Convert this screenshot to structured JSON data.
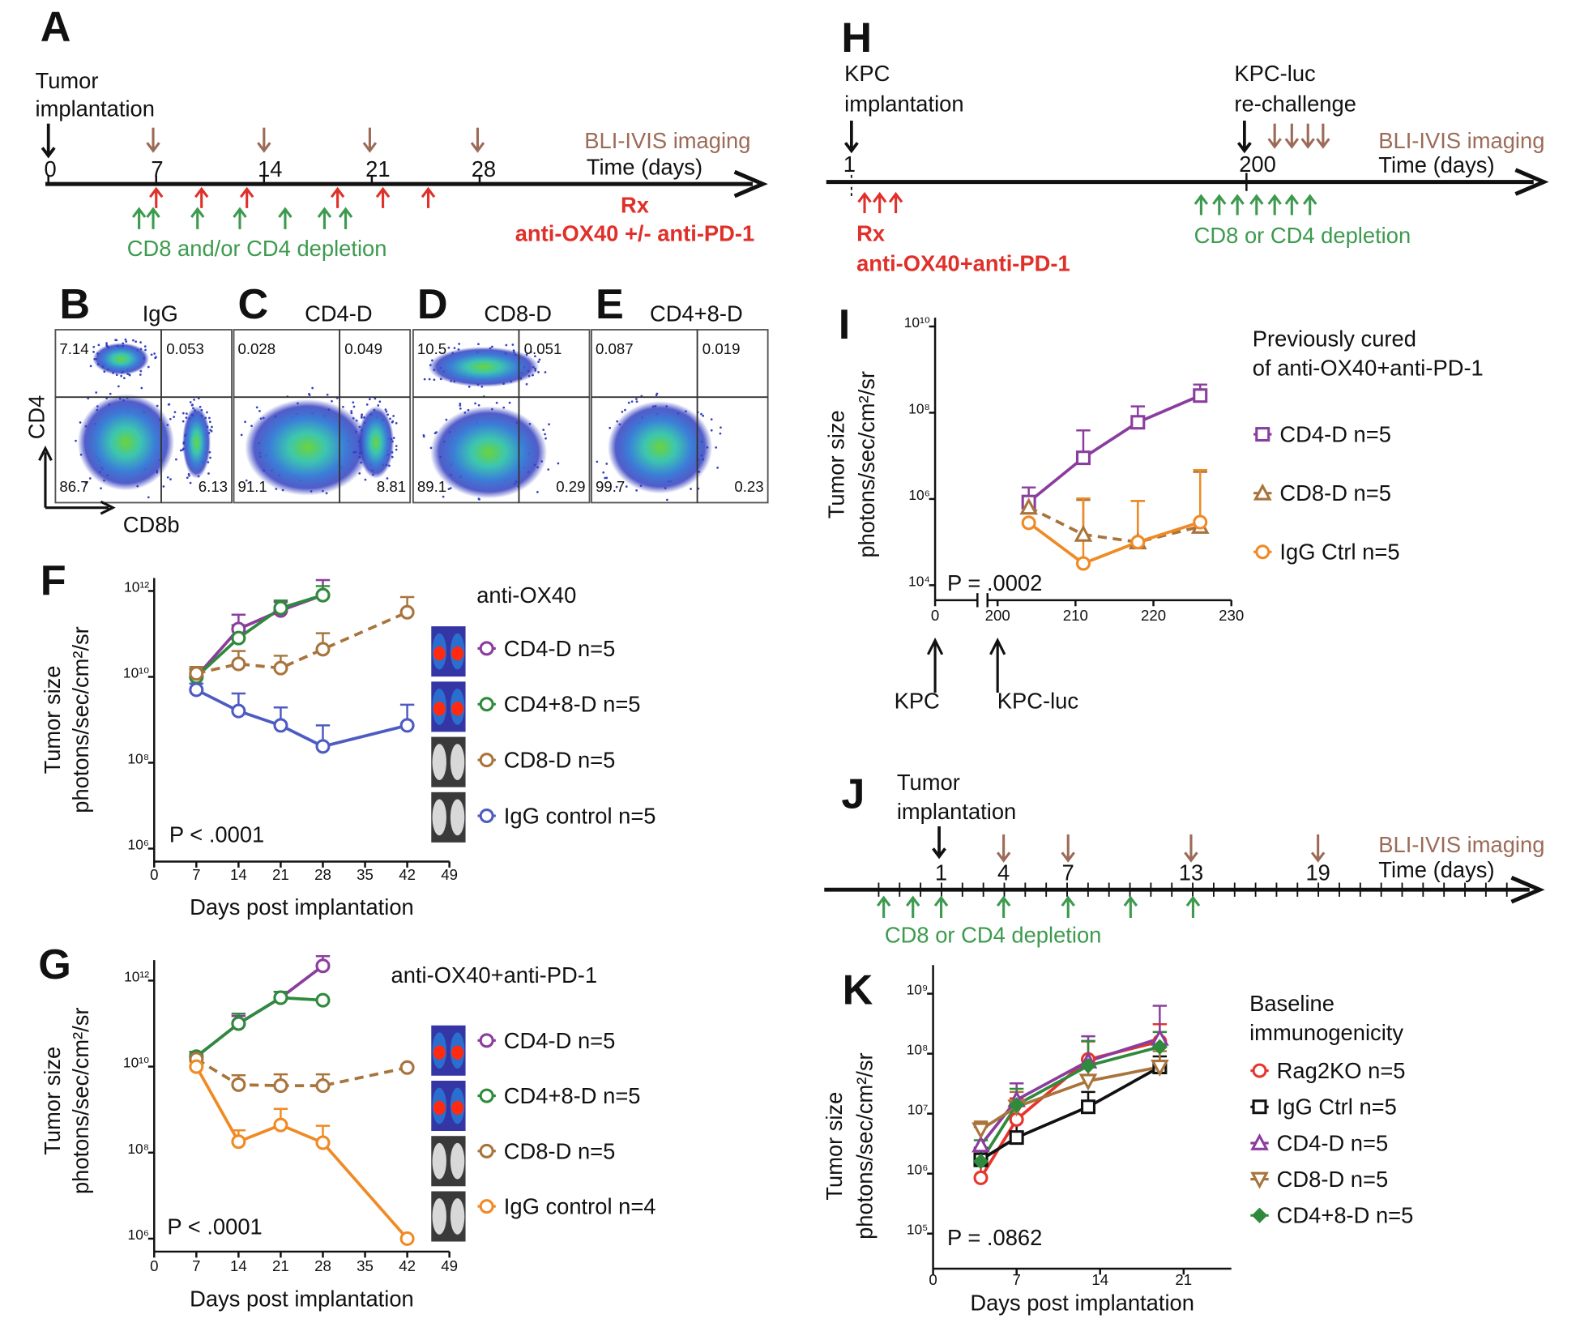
{
  "panels": {
    "A": {
      "label": "A",
      "event": [
        "Tumor",
        "implantation"
      ],
      "days": [
        0,
        7,
        14,
        21,
        28
      ],
      "imaging": "BLI-IVIS imaging",
      "axis": "Time (days)",
      "rx": [
        "Rx",
        "anti-OX40 +/- anti-PD-1"
      ],
      "depletion": "CD8 and/or CD4 depletion"
    },
    "flow": {
      "ylabel": "CD4",
      "xlabel": "CD8b",
      "plots": [
        {
          "label": "B",
          "title": "IgG",
          "quadrants": [
            7.14,
            0.053,
            86.7,
            6.13
          ]
        },
        {
          "label": "C",
          "title": "CD4-D",
          "quadrants": [
            0.028,
            0.049,
            91.1,
            8.81
          ]
        },
        {
          "label": "D",
          "title": "CD8-D",
          "quadrants": [
            10.5,
            0.051,
            89.1,
            0.29
          ]
        },
        {
          "label": "E",
          "title": "CD4+8-D",
          "quadrants": [
            0.087,
            0.019,
            99.7,
            0.23
          ]
        }
      ]
    },
    "H": {
      "label": "H",
      "events": [
        [
          "KPC",
          "implantation"
        ],
        [
          "KPC-luc",
          "re-challenge"
        ]
      ],
      "days": [
        1,
        200
      ],
      "imaging": "BLI-IVIS imaging",
      "axis": "Time (days)",
      "rx": [
        "Rx",
        "anti-OX40+anti-PD-1"
      ],
      "depletion": "CD8 or CD4 depletion"
    },
    "J": {
      "label": "J",
      "event": [
        "Tumor",
        "implantation"
      ],
      "days": [
        1,
        4,
        7,
        13,
        19
      ],
      "imaging": "BLI-IVIS imaging",
      "axis": "Time (days)",
      "depletion": "CD8 or CD4 depletion"
    }
  },
  "chart_data": [
    {
      "type": "line",
      "label": "F",
      "legend_title": [
        "anti-OX40"
      ],
      "legend_title_color": "#4d5bc2",
      "ylabel": [
        "Tumor size",
        "photons/sec/cm²/sr"
      ],
      "xlabel": "Days post implantation",
      "annotation": "P < .0001",
      "x": [
        7,
        14,
        21,
        28,
        42
      ],
      "xlim": [
        0,
        49
      ],
      "xticks": [
        0,
        7,
        14,
        21,
        28,
        35,
        42,
        49
      ],
      "log_y": true,
      "ylim": [
        500000,
        2000000000000
      ],
      "yticks": [
        {
          "value": 1000000,
          "label": "10⁶"
        },
        {
          "value": 100000000,
          "label": "10⁸"
        },
        {
          "value": 10000000000,
          "label": "10¹⁰"
        },
        {
          "value": 1000000000000,
          "label": "10¹²"
        }
      ],
      "series": [
        {
          "name": "CD4-D n=5",
          "color": "#8b3d9e",
          "marker": "circle",
          "dashed": false,
          "values": [
            10000000000.0,
            130000000000.0,
            350000000000.0,
            800000000000.0,
            null
          ],
          "errors": [
            5000000000.0,
            150000000000.0,
            200000000000.0,
            1000000000000.0,
            null
          ]
        },
        {
          "name": "CD4+8-D n=5",
          "color": "#2f8a3c",
          "marker": "circle",
          "dashed": false,
          "values": [
            10000000000.0,
            80000000000.0,
            400000000000.0,
            800000000000.0,
            null
          ],
          "errors": [
            5000000000.0,
            80000000000.0,
            200000000000.0,
            500000000000.0,
            null
          ]
        },
        {
          "name": "CD8-D n=5",
          "color": "#a8743c",
          "marker": "circle",
          "dashed": true,
          "values": [
            12000000000.0,
            20000000000.0,
            16000000000.0,
            44000000000.0,
            320000000000.0
          ],
          "errors": [
            5000000000.0,
            20000000000.0,
            15000000000.0,
            60000000000.0,
            400000000000.0
          ]
        },
        {
          "name": "IgG control n=5",
          "color": "#4d5bc2",
          "marker": "circle",
          "dashed": false,
          "values": [
            5000000000.0,
            1600000000.0,
            740000000.0,
            240000000.0,
            740000000.0
          ],
          "errors": [
            2000000000.0,
            2500000000.0,
            1200000000.0,
            500000000.0,
            1500000000.0
          ]
        }
      ]
    },
    {
      "type": "line",
      "label": "G",
      "legend_title": [
        "anti-OX40+anti-PD-1"
      ],
      "legend_title_color": "#f08a24",
      "ylabel": [
        "Tumor size",
        "photons/sec/cm²/sr"
      ],
      "xlabel": "Days post implantation",
      "annotation": "P < .0001",
      "x": [
        7,
        14,
        21,
        28,
        42
      ],
      "xlim": [
        0,
        49
      ],
      "xticks": [
        0,
        7,
        14,
        21,
        28,
        35,
        42,
        49
      ],
      "log_y": true,
      "ylim": [
        500000,
        3000000000000
      ],
      "yticks": [
        {
          "value": 1000000,
          "label": "10⁶"
        },
        {
          "value": 100000000,
          "label": "10⁸"
        },
        {
          "value": 10000000000,
          "label": "10¹⁰"
        },
        {
          "value": 1000000000000,
          "label": "10¹²"
        }
      ],
      "series": [
        {
          "name": "CD4-D n=5",
          "color": "#8b3d9e",
          "marker": "circle",
          "dashed": false,
          "values": [
            17000000000.0,
            100000000000.0,
            400000000000.0,
            2200000000000.0,
            null
          ],
          "errors": [
            5000000000.0,
            50000000000.0,
            150000000000.0,
            1500000000000.0,
            null
          ]
        },
        {
          "name": "CD4+8-D n=5",
          "color": "#2f8a3c",
          "marker": "circle",
          "dashed": false,
          "values": [
            17000000000.0,
            100000000000.0,
            400000000000.0,
            350000000000.0,
            null
          ],
          "errors": [
            5000000000.0,
            70000000000.0,
            150000000000.0,
            null,
            null
          ]
        },
        {
          "name": "CD8-D n=5",
          "color": "#a8743c",
          "marker": "circle",
          "dashed": true,
          "values": [
            15000000000.0,
            3800000000.0,
            3600000000.0,
            3600000000.0,
            9500000000.0
          ],
          "errors": [
            5000000000.0,
            2500000000.0,
            3000000000.0,
            3000000000.0,
            null
          ]
        },
        {
          "name": "IgG control n=4",
          "color": "#f08a24",
          "marker": "circle",
          "dashed": false,
          "values": [
            10000000000.0,
            180000000.0,
            440000000.0,
            170000000.0,
            1000000.0
          ],
          "errors": [
            3000000000.0,
            150000000.0,
            600000000.0,
            250000000.0,
            null
          ]
        }
      ]
    },
    {
      "type": "line",
      "label": "I",
      "legend_title": [
        "Previously cured",
        "of anti-OX40+anti-PD-1"
      ],
      "legend_title_color": "#f08a24",
      "ylabel": [
        "Tumor size",
        "photons/sec/cm²/sr"
      ],
      "annotation": "P = .0002",
      "annotations": [
        {
          "text": "KPC",
          "x": 0
        },
        {
          "text": "KPC-luc",
          "x": 200
        }
      ],
      "x": [
        204,
        211,
        218,
        226
      ],
      "xlim": [
        0,
        230
      ],
      "xticks": [
        0,
        200,
        210,
        220,
        230
      ],
      "axis_break": true,
      "log_y": true,
      "ylim": [
        4500,
        16000000000
      ],
      "yticks": [
        {
          "value": 10000,
          "label": "10⁴"
        },
        {
          "value": 1000000,
          "label": "10⁶"
        },
        {
          "value": 100000000,
          "label": "10⁸"
        },
        {
          "value": 10000000000,
          "label": "10¹⁰"
        }
      ],
      "series": [
        {
          "name": "CD4-D n=5",
          "color": "#8b3d9e",
          "marker": "square",
          "dashed": false,
          "values": [
            850000.0,
            9000000.0,
            60000000.0,
            250000000.0
          ],
          "errors": [
            1000000.0,
            30000000.0,
            80000000.0,
            200000000.0
          ]
        },
        {
          "name": "CD8-D n=5",
          "color": "#a8743c",
          "marker": "triangle",
          "dashed": true,
          "values": [
            640000.0,
            150000.0,
            100000.0,
            230000.0
          ],
          "errors": [
            500000.0,
            800000.0,
            800000.0,
            4000000.0
          ]
        },
        {
          "name": "IgG Ctrl n=5",
          "color": "#f08a24",
          "marker": "circle",
          "dashed": false,
          "values": [
            280000.0,
            32000.0,
            100000.0,
            290000.0
          ],
          "errors": [
            null,
            1000000.0,
            800000.0,
            4400000.0
          ]
        }
      ]
    },
    {
      "type": "line",
      "label": "K",
      "legend_title": [
        "Baseline",
        "immunogenicity"
      ],
      "legend_title_color": "#111111",
      "ylabel": [
        "Tumor size",
        "photons/sec/cm²/sr"
      ],
      "xlabel": "Days post implantation",
      "annotation": "P = .0862",
      "x": [
        4,
        7,
        13,
        19
      ],
      "xlim": [
        0,
        25
      ],
      "xticks": [
        0,
        7,
        14,
        21
      ],
      "log_y": true,
      "ylim": [
        26000,
        3000000000
      ],
      "yticks": [
        {
          "value": 100000,
          "label": "10⁵"
        },
        {
          "value": 1000000,
          "label": "10⁶"
        },
        {
          "value": 10000000,
          "label": "10⁷"
        },
        {
          "value": 100000000,
          "label": "10⁸"
        },
        {
          "value": 1000000000,
          "label": "10⁹"
        }
      ],
      "series": [
        {
          "name": "Rag2KO n=5",
          "color": "#e8342b",
          "marker": "circle",
          "dashed": false,
          "values": [
            850000.0,
            8000000.0,
            80000000.0,
            160000000.0
          ],
          "errors": [
            1000000.0,
            10000000.0,
            80000000.0,
            150000000.0
          ]
        },
        {
          "name": "IgG Ctrl n=5",
          "color": "#111111",
          "marker": "square",
          "dashed": false,
          "values": [
            1700000.0,
            4000000.0,
            13000000.0,
            60000000.0
          ],
          "errors": [
            1000000.0,
            4000000.0,
            10000000.0,
            30000000.0
          ]
        },
        {
          "name": "CD4-D n=5",
          "color": "#8b3d9e",
          "marker": "triangle",
          "dashed": false,
          "values": [
            3000000.0,
            17000000.0,
            75000000.0,
            180000000.0
          ],
          "errors": [
            3000000.0,
            15000000.0,
            120000000.0,
            450000000.0
          ]
        },
        {
          "name": "CD8-D n=5",
          "color": "#a8743c",
          "marker": "triangle-down",
          "dashed": false,
          "values": [
            5400000.0,
            13000000.0,
            35000000.0,
            60000000.0
          ],
          "errors": [
            2000000.0,
            10000000.0,
            30000000.0,
            50000000.0
          ]
        },
        {
          "name": "CD4+8-D n=5",
          "color": "#2f8a3c",
          "marker": "diamond",
          "dashed": false,
          "values": [
            1600000.0,
            14000000.0,
            63000000.0,
            130000000.0
          ],
          "errors": [
            2000000.0,
            12000000.0,
            100000000.0,
            100000000.0
          ]
        }
      ]
    }
  ]
}
